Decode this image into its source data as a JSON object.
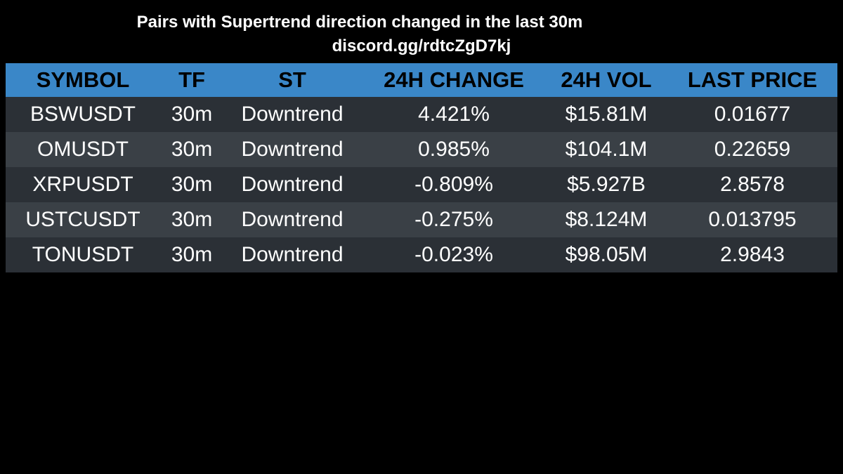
{
  "header": {
    "title": "Pairs with Supertrend direction changed in the last 30m",
    "subtitle": "discord.gg/rdtcZgD7kj"
  },
  "table": {
    "columns": [
      "SYMBOL",
      "TF",
      "ST",
      "24H CHANGE",
      "24H VOL",
      "LAST PRICE"
    ],
    "rows": [
      [
        "BSWUSDT",
        "30m",
        "Downtrend",
        "4.421%",
        "$15.81M",
        "0.01677"
      ],
      [
        "OMUSDT",
        "30m",
        "Downtrend",
        "0.985%",
        "$104.1M",
        "0.22659"
      ],
      [
        "XRPUSDT",
        "30m",
        "Downtrend",
        "-0.809%",
        "$5.927B",
        "2.8578"
      ],
      [
        "USTCUSDT",
        "30m",
        "Downtrend",
        "-0.275%",
        "$8.124M",
        "0.013795"
      ],
      [
        "TONUSDT",
        "30m",
        "Downtrend",
        "-0.023%",
        "$98.05M",
        "2.9843"
      ]
    ]
  }
}
